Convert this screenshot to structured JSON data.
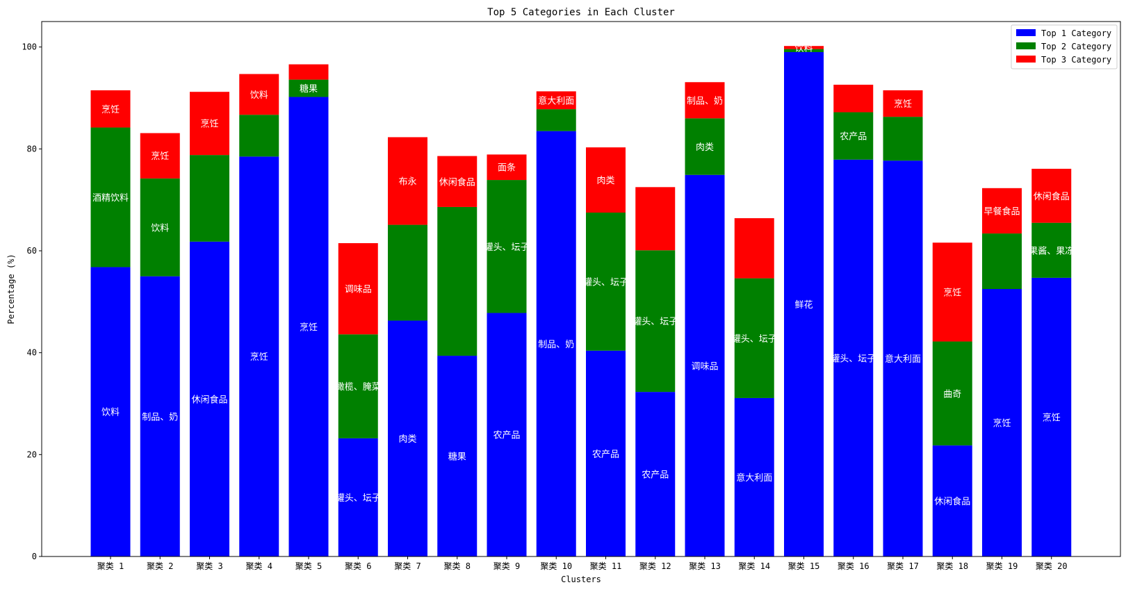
{
  "chart_data": {
    "type": "bar",
    "stacked": true,
    "title": "Top 5 Categories in Each Cluster",
    "xlabel": "Clusters",
    "ylabel": "Percentage (%)",
    "ylim": [
      0,
      105
    ],
    "yticks": [
      0,
      20,
      40,
      60,
      80,
      100
    ],
    "grid": false,
    "legend_position": "top-right",
    "categories": [
      "聚类 1",
      "聚类 2",
      "聚类 3",
      "聚类 4",
      "聚类 5",
      "聚类 6",
      "聚类 7",
      "聚类 8",
      "聚类 9",
      "聚类 10",
      "聚类 11",
      "聚类 12",
      "聚类 13",
      "聚类 14",
      "聚类 15",
      "聚类 16",
      "聚类 17",
      "聚类 18",
      "聚类 19",
      "聚类 20"
    ],
    "series": [
      {
        "name": "Top 1 Category",
        "color": "#0000ff",
        "values": [
          56.8,
          55.0,
          61.8,
          78.5,
          90.2,
          23.2,
          46.3,
          39.4,
          47.8,
          83.5,
          40.4,
          32.3,
          74.9,
          31.1,
          99.0,
          77.9,
          77.7,
          21.8,
          52.5,
          54.7
        ],
        "labels": [
          "饮料",
          "制品、奶",
          "休闲食品",
          "烹饪",
          "烹饪",
          "罐头、坛子",
          "肉类",
          "糖果",
          "农产品",
          "制品、奶",
          "农产品",
          "农产品",
          "调味品",
          "意大利面",
          "鲜花",
          "罐头、坛子",
          "意大利面",
          "休闲食品",
          "烹饪",
          "烹饪"
        ]
      },
      {
        "name": "Top 2 Category",
        "color": "#008000",
        "values": [
          27.4,
          19.2,
          17.0,
          8.2,
          3.4,
          20.4,
          18.8,
          29.2,
          26.1,
          4.3,
          27.1,
          27.8,
          11.1,
          23.5,
          0.6,
          9.3,
          8.6,
          20.4,
          10.9,
          10.8
        ],
        "labels": [
          "酒精饮料",
          "饮料",
          "",
          "",
          "糖果",
          "橄榄、腌菜",
          "",
          "",
          "罐头、坛子",
          "",
          "罐头、坛子",
          "罐头、坛子",
          "肉类",
          "罐头、坛子",
          "",
          "农产品",
          "",
          "曲奇",
          "",
          "果酱、果冻"
        ]
      },
      {
        "name": "Top 3 Category",
        "color": "#ff0000",
        "values": [
          7.3,
          8.9,
          12.4,
          8.0,
          3.0,
          17.9,
          17.2,
          10.0,
          5.0,
          3.5,
          12.8,
          12.4,
          7.1,
          11.8,
          0.6,
          5.4,
          5.2,
          19.4,
          8.9,
          10.6
        ],
        "labels": [
          "烹饪",
          "烹饪",
          "烹饪",
          "饮料",
          "",
          "调味品",
          "布永",
          "休闲食品",
          "面条",
          "意大利面",
          "肉类",
          "",
          "制品、奶",
          "",
          "饮料",
          "",
          "烹饪",
          "烹饪",
          "早餐食品",
          "休闲食品"
        ]
      }
    ]
  }
}
